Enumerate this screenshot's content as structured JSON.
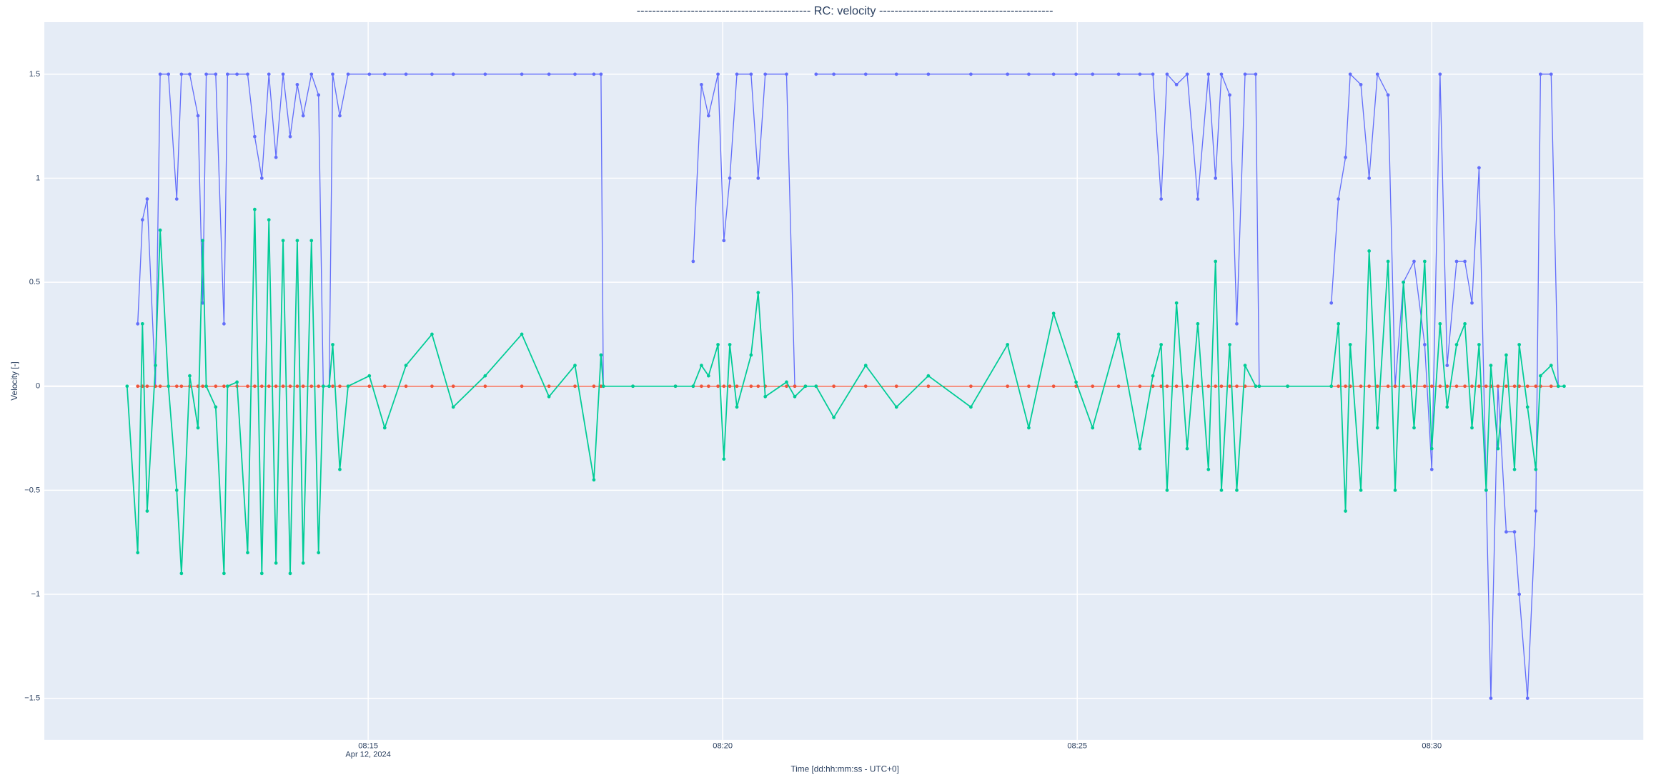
{
  "chart_data": {
    "type": "line",
    "title": "---------------------------------------------  RC: velocity  ---------------------------------------------",
    "x_label": "Time [dd:hh:mm:ss - UTC+0]",
    "y_label": "Velocity [-]",
    "grid": true,
    "markers": true,
    "xlim": [
      "2024-04-12T08:10:26",
      "2024-04-12T08:32:59"
    ],
    "xticks": [
      {
        "value": "2024-04-12T08:15:00",
        "label": "08:15",
        "sublabel": "Apr 12, 2024"
      },
      {
        "value": "2024-04-12T08:20:00",
        "label": "08:20"
      },
      {
        "value": "2024-04-12T08:25:00",
        "label": "08:25"
      },
      {
        "value": "2024-04-12T08:30:00",
        "label": "08:30"
      }
    ],
    "ylim": [
      -1.7,
      1.75
    ],
    "yticks": [
      {
        "value": -1.5,
        "label": "−1.5"
      },
      {
        "value": -1,
        "label": "−1"
      },
      {
        "value": -0.5,
        "label": "−0.5"
      },
      0,
      0.5,
      1,
      1.5
    ],
    "x": [
      "2024-04-12T08:11:36",
      "2024-04-12T08:11:45",
      "2024-04-12T08:11:49",
      "2024-04-12T08:11:53",
      "2024-04-12T08:12:00",
      "2024-04-12T08:12:04",
      "2024-04-12T08:12:11",
      "2024-04-12T08:12:18",
      "2024-04-12T08:12:22",
      "2024-04-12T08:12:29",
      "2024-04-12T08:12:36",
      "2024-04-12T08:12:40",
      "2024-04-12T08:12:43",
      "2024-04-12T08:12:51",
      "2024-04-12T08:12:58",
      "2024-04-12T08:13:01",
      "2024-04-12T08:13:09",
      "2024-04-12T08:13:18",
      "2024-04-12T08:13:24",
      "2024-04-12T08:13:30",
      "2024-04-12T08:13:36",
      "2024-04-12T08:13:42",
      "2024-04-12T08:13:48",
      "2024-04-12T08:13:54",
      "2024-04-12T08:14:00",
      "2024-04-12T08:14:05",
      "2024-04-12T08:14:12",
      "2024-04-12T08:14:18",
      "2024-04-12T08:14:22",
      "2024-04-12T08:14:27",
      "2024-04-12T08:14:30",
      "2024-04-12T08:14:36",
      "2024-04-12T08:14:43",
      "2024-04-12T08:15:01",
      "2024-04-12T08:15:14",
      "2024-04-12T08:15:32",
      "2024-04-12T08:15:54",
      "2024-04-12T08:16:12",
      "2024-04-12T08:16:39",
      "2024-04-12T08:17:10",
      "2024-04-12T08:17:33",
      "2024-04-12T08:17:55",
      "2024-04-12T08:18:11",
      "2024-04-12T08:18:17",
      "2024-04-12T08:18:19",
      "2024-04-12T08:18:44",
      "2024-04-12T08:19:20",
      "2024-04-12T08:19:35",
      "2024-04-12T08:19:42",
      "2024-04-12T08:19:48",
      "2024-04-12T08:19:56",
      "2024-04-12T08:20:01",
      "2024-04-12T08:20:06",
      "2024-04-12T08:20:12",
      "2024-04-12T08:20:24",
      "2024-04-12T08:20:30",
      "2024-04-12T08:20:36",
      "2024-04-12T08:20:54",
      "2024-04-12T08:21:01",
      "2024-04-12T08:21:10",
      "2024-04-12T08:21:19",
      "2024-04-12T08:21:34",
      "2024-04-12T08:22:01",
      "2024-04-12T08:22:27",
      "2024-04-12T08:22:54",
      "2024-04-12T08:23:30",
      "2024-04-12T08:24:01",
      "2024-04-12T08:24:19",
      "2024-04-12T08:24:40",
      "2024-04-12T08:24:59",
      "2024-04-12T08:25:13",
      "2024-04-12T08:25:35",
      "2024-04-12T08:25:53",
      "2024-04-12T08:26:04",
      "2024-04-12T08:26:11",
      "2024-04-12T08:26:16",
      "2024-04-12T08:26:24",
      "2024-04-12T08:26:33",
      "2024-04-12T08:26:42",
      "2024-04-12T08:26:51",
      "2024-04-12T08:26:57",
      "2024-04-12T08:27:02",
      "2024-04-12T08:27:09",
      "2024-04-12T08:27:15",
      "2024-04-12T08:27:22",
      "2024-04-12T08:27:31",
      "2024-04-12T08:27:34",
      "2024-04-12T08:27:58",
      "2024-04-12T08:28:35",
      "2024-04-12T08:28:41",
      "2024-04-12T08:28:47",
      "2024-04-12T08:28:51",
      "2024-04-12T08:29:00",
      "2024-04-12T08:29:07",
      "2024-04-12T08:29:14",
      "2024-04-12T08:29:23",
      "2024-04-12T08:29:29",
      "2024-04-12T08:29:36",
      "2024-04-12T08:29:45",
      "2024-04-12T08:29:54",
      "2024-04-12T08:30:00",
      "2024-04-12T08:30:07",
      "2024-04-12T08:30:13",
      "2024-04-12T08:30:21",
      "2024-04-12T08:30:28",
      "2024-04-12T08:30:34",
      "2024-04-12T08:30:40",
      "2024-04-12T08:30:46",
      "2024-04-12T08:30:50",
      "2024-04-12T08:30:56",
      "2024-04-12T08:31:03",
      "2024-04-12T08:31:10",
      "2024-04-12T08:31:14",
      "2024-04-12T08:31:21",
      "2024-04-12T08:31:28",
      "2024-04-12T08:31:32",
      "2024-04-12T08:31:41",
      "2024-04-12T08:31:47",
      "2024-04-12T08:31:52"
    ],
    "series": [
      {
        "color": "#636efa",
        "values": [
          null,
          0.3,
          0.8,
          0.9,
          0,
          1.5,
          1.5,
          0.9,
          1.5,
          1.5,
          1.3,
          0.4,
          1.5,
          1.5,
          0.3,
          1.5,
          1.5,
          1.5,
          1.2,
          1.0,
          1.5,
          1.1,
          1.5,
          1.2,
          1.45,
          1.3,
          1.5,
          1.4,
          0,
          0,
          1.5,
          1.3,
          1.5,
          1.5,
          1.5,
          1.5,
          1.5,
          1.5,
          1.5,
          1.5,
          1.5,
          1.5,
          1.5,
          1.5,
          0,
          null,
          null,
          0.6,
          1.45,
          1.3,
          1.5,
          0.7,
          1.0,
          1.5,
          1.5,
          1.0,
          1.5,
          1.5,
          0,
          null,
          1.5,
          1.5,
          1.5,
          1.5,
          1.5,
          1.5,
          1.5,
          1.5,
          1.5,
          1.5,
          1.5,
          1.5,
          1.5,
          1.5,
          0.9,
          1.5,
          1.45,
          1.5,
          0.9,
          1.5,
          1.0,
          1.5,
          1.4,
          0.3,
          1.5,
          1.5,
          0,
          null,
          0.4,
          0.9,
          1.1,
          1.5,
          1.45,
          1.0,
          1.5,
          1.4,
          0,
          0.5,
          0.6,
          0.2,
          -0.4,
          1.5,
          0.1,
          0.6,
          0.6,
          0.4,
          1.05,
          -0.5,
          -1.5,
          0,
          -0.7,
          -0.7,
          -1.0,
          -1.5,
          -0.6,
          1.5,
          1.5,
          0,
          null
        ]
      },
      {
        "color": "#ef553b",
        "values": [
          null,
          0,
          0,
          0,
          0,
          0,
          0,
          0,
          0,
          0,
          0,
          0,
          0,
          0,
          0,
          0,
          0,
          0,
          0,
          0,
          0,
          0,
          0,
          0,
          0,
          0,
          0,
          0,
          0,
          0,
          0,
          0,
          0,
          0,
          0,
          0,
          0,
          0,
          0,
          0,
          0,
          0,
          0,
          0,
          0,
          0,
          0,
          0,
          0,
          0,
          0,
          0,
          0,
          0,
          0,
          0,
          0,
          0,
          0,
          0,
          0,
          0,
          0,
          0,
          0,
          0,
          0,
          0,
          0,
          0,
          0,
          0,
          0,
          0,
          0,
          0,
          0,
          0,
          0,
          0,
          0,
          0,
          0,
          0,
          0,
          0,
          0,
          0,
          0,
          0,
          0,
          0,
          0,
          0,
          0,
          0,
          0,
          0,
          0,
          0,
          0,
          0,
          0,
          0,
          0,
          0,
          0,
          0,
          0,
          0,
          0,
          0,
          0,
          0,
          0,
          0,
          0,
          0,
          null
        ]
      },
      {
        "color": "#00cc96",
        "values": [
          0,
          -0.8,
          0.3,
          -0.6,
          0.1,
          0.75,
          0,
          -0.5,
          -0.9,
          0.05,
          -0.2,
          0.7,
          0,
          -0.1,
          -0.9,
          0,
          0.02,
          -0.8,
          0.85,
          -0.9,
          0.8,
          -0.85,
          0.7,
          -0.9,
          0.7,
          -0.85,
          0.7,
          -0.8,
          0,
          0,
          0.2,
          -0.4,
          0,
          0.05,
          -0.2,
          0.1,
          0.25,
          -0.1,
          0.05,
          0.25,
          -0.05,
          0.1,
          -0.45,
          0.15,
          0,
          0,
          0,
          0,
          0.1,
          0.05,
          0.2,
          -0.35,
          0.2,
          -0.1,
          0.15,
          0.45,
          -0.05,
          0.02,
          -0.05,
          0,
          0,
          -0.15,
          0.1,
          -0.1,
          0.05,
          -0.1,
          0.2,
          -0.2,
          0.35,
          0.02,
          -0.2,
          0.25,
          -0.3,
          0.05,
          0.2,
          -0.5,
          0.4,
          -0.3,
          0.3,
          -0.4,
          0.6,
          -0.5,
          0.2,
          -0.5,
          0.1,
          0,
          0,
          0,
          0,
          0.3,
          -0.6,
          0.2,
          -0.5,
          0.65,
          -0.2,
          0.6,
          -0.5,
          0.5,
          -0.2,
          0.6,
          -0.3,
          0.3,
          -0.1,
          0.2,
          0.3,
          -0.2,
          0.2,
          -0.5,
          0.1,
          -0.3,
          0.15,
          -0.4,
          0.2,
          -0.1,
          -0.4,
          0.05,
          0.1,
          0,
          0
        ]
      }
    ]
  }
}
